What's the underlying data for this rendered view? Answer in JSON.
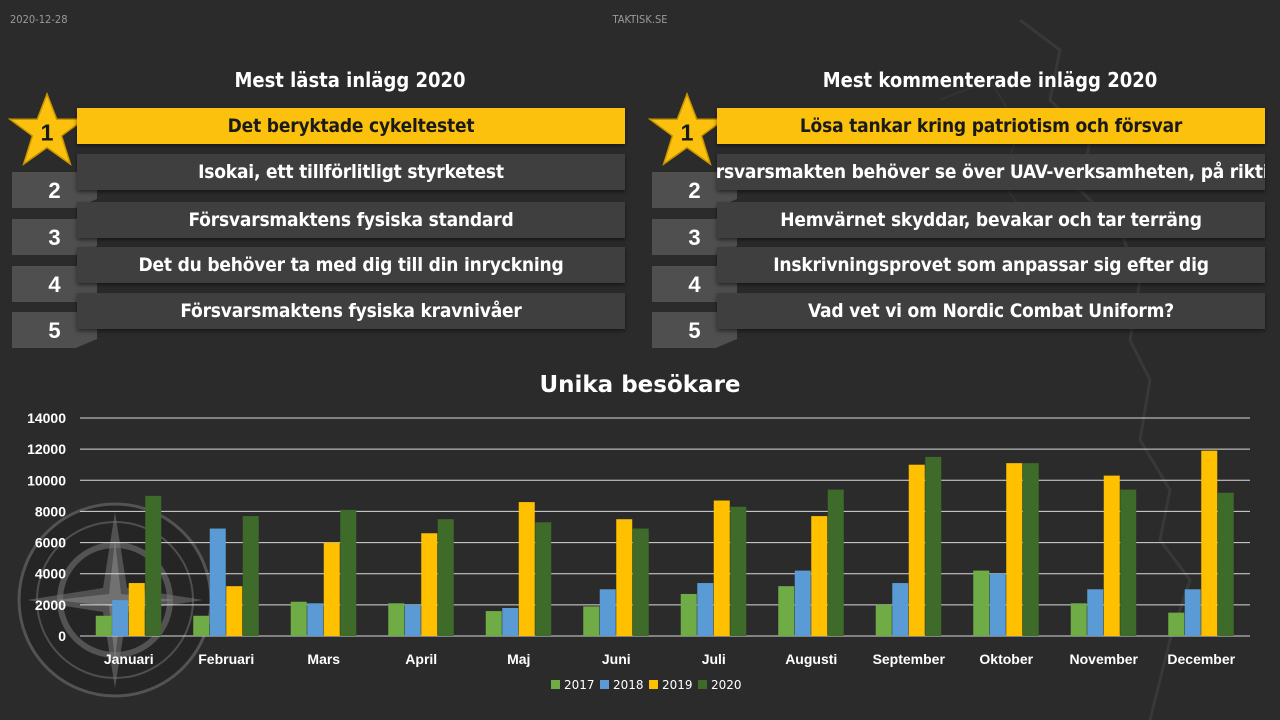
{
  "header": {
    "date": "2020-12-28",
    "site": "TAKTISK.SE"
  },
  "most_read": {
    "title": "Mest lästa inlägg 2020",
    "items": [
      {
        "rank": "1",
        "label": "Det beryktade cykeltestet"
      },
      {
        "rank": "2",
        "label": "Isokai, ett tillförlitligt styrketest"
      },
      {
        "rank": "3",
        "label": "Försvarsmaktens fysiska standard"
      },
      {
        "rank": "4",
        "label": "Det du behöver ta med dig till din inryckning"
      },
      {
        "rank": "5",
        "label": "Försvarsmaktens fysiska kravnivåer"
      }
    ]
  },
  "most_commented": {
    "title": "Mest kommenterade inlägg 2020",
    "items": [
      {
        "rank": "1",
        "label": "Lösa tankar kring patriotism och försvar"
      },
      {
        "rank": "2",
        "label": "Försvarsmakten behöver se över UAV-verksamheten, på riktigt"
      },
      {
        "rank": "3",
        "label": "Hemvärnet skyddar, bevakar och tar terräng"
      },
      {
        "rank": "4",
        "label": "Inskrivningsprovet som anpassar sig efter dig"
      },
      {
        "rank": "5",
        "label": "Vad vet vi om Nordic Combat Uniform?"
      }
    ]
  },
  "colors": {
    "accent": "#fcc10c",
    "bar_dark": "#3f3f3f",
    "badge": "#4f4f4f",
    "background": "#2b2b2b"
  },
  "chart_data": {
    "type": "bar",
    "title": "Unika besökare",
    "categories": [
      "Januari",
      "Februari",
      "Mars",
      "April",
      "Maj",
      "Juni",
      "Juli",
      "Augusti",
      "September",
      "Oktober",
      "November",
      "December"
    ],
    "series": [
      {
        "name": "2017",
        "color": "#6fac46",
        "values": [
          1300,
          1300,
          2200,
          2100,
          1600,
          1900,
          2700,
          3200,
          2000,
          4200,
          2100,
          1500
        ]
      },
      {
        "name": "2018",
        "color": "#5b9bd5",
        "values": [
          2300,
          6900,
          2100,
          2000,
          1800,
          3000,
          3400,
          4200,
          3400,
          4000,
          3000,
          3000
        ]
      },
      {
        "name": "2019",
        "color": "#ffc000",
        "values": [
          3400,
          3200,
          6000,
          6600,
          8600,
          7500,
          8700,
          7700,
          11000,
          11100,
          10300,
          11900
        ]
      },
      {
        "name": "2020",
        "color": "#3e6b2a",
        "values": [
          9000,
          7700,
          8100,
          7500,
          7300,
          6900,
          8300,
          9400,
          11500,
          11100,
          9400,
          9200
        ]
      }
    ],
    "ylim": [
      0,
      14000
    ],
    "yticks": [
      "0",
      "2000",
      "4000",
      "6000",
      "8000",
      "10000",
      "12000",
      "14000"
    ],
    "grid": true,
    "legend": "bottom"
  }
}
